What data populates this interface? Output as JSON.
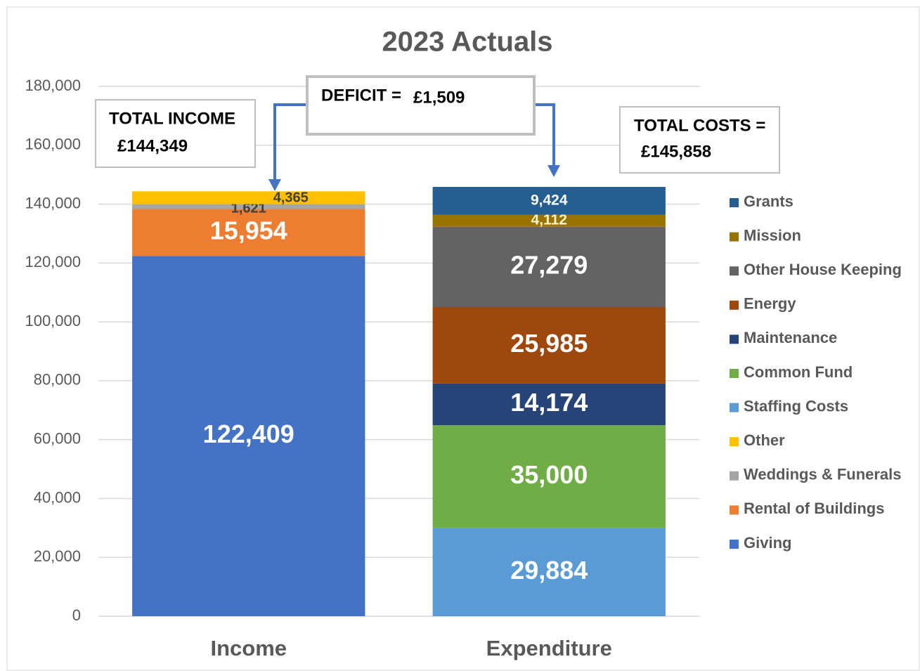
{
  "chart_data": {
    "type": "stacked_bar",
    "title": "2023 Actuals",
    "categories": [
      "Income",
      "Expenditure"
    ],
    "series": [
      {
        "name": "Giving",
        "color": "#4472c4",
        "values": [
          122409,
          null
        ],
        "value_labels": [
          "122,409",
          null
        ]
      },
      {
        "name": "Rental of Buildings",
        "color": "#ed7d31",
        "values": [
          15954,
          null
        ],
        "value_labels": [
          "15,954",
          null
        ]
      },
      {
        "name": "Weddings & Funerals",
        "color": "#a5a5a5",
        "values": [
          1621,
          null
        ],
        "value_labels": [
          "1,621",
          null
        ]
      },
      {
        "name": "Other",
        "color": "#ffc000",
        "values": [
          4365,
          null
        ],
        "value_labels": [
          "4,365",
          null
        ]
      },
      {
        "name": "Staffing Costs",
        "color": "#5b9bd5",
        "values": [
          null,
          29884
        ],
        "value_labels": [
          null,
          "29,884"
        ]
      },
      {
        "name": "Common Fund",
        "color": "#70ad47",
        "values": [
          null,
          35000
        ],
        "value_labels": [
          null,
          "35,000"
        ]
      },
      {
        "name": "Maintenance",
        "color": "#264478",
        "values": [
          null,
          14174
        ],
        "value_labels": [
          null,
          "14,174"
        ]
      },
      {
        "name": "Energy",
        "color": "#9e480e",
        "values": [
          null,
          25985
        ],
        "value_labels": [
          null,
          "25,985"
        ]
      },
      {
        "name": "Other House Keeping",
        "color": "#636363",
        "values": [
          null,
          27279
        ],
        "value_labels": [
          null,
          "27,279"
        ]
      },
      {
        "name": "Mission",
        "color": "#997300",
        "values": [
          null,
          4112
        ],
        "value_labels": [
          null,
          "4,112"
        ]
      },
      {
        "name": "Grants",
        "color": "#255e91",
        "values": [
          null,
          9424
        ],
        "value_labels": [
          null,
          "9,424"
        ]
      }
    ],
    "ylim": [
      0,
      180000
    ],
    "yticks": [
      0,
      {
        "value": 20000,
        "label": "20,000"
      },
      {
        "value": 40000,
        "label": "40,000"
      },
      {
        "value": 60000,
        "label": "60,000"
      },
      {
        "value": 80000,
        "label": "80,000"
      },
      {
        "value": 100000,
        "label": "100,000"
      },
      {
        "value": 120000,
        "label": "120,000"
      },
      {
        "value": 140000,
        "label": "140,000"
      },
      {
        "value": 160000,
        "label": "160,000"
      },
      {
        "value": 180000,
        "label": "180,000"
      }
    ],
    "grid": true,
    "legend": "right",
    "annotations": [
      "TOTAL INCOME",
      "£144,349",
      "DEFICIT =",
      "£1,509",
      "TOTAL COSTS =",
      "£145,858"
    ]
  }
}
